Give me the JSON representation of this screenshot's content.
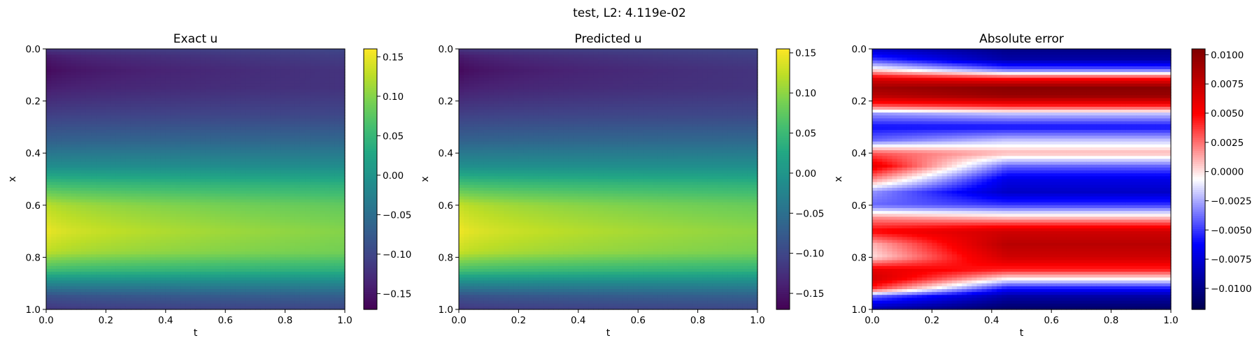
{
  "suptitle": "test, L2: 4.119e-02",
  "chart_data": [
    {
      "type": "heatmap",
      "title": "Exact u",
      "xlabel": "t",
      "ylabel": "x",
      "xlim": [
        0.0,
        1.0
      ],
      "ylim": [
        1.0,
        0.0
      ],
      "xticks": [
        "0.0",
        "0.2",
        "0.4",
        "0.6",
        "0.8",
        "1.0"
      ],
      "yticks": [
        "0.0",
        "0.2",
        "0.4",
        "0.6",
        "0.8",
        "1.0"
      ],
      "colormap": "viridis",
      "colorbar_range": [
        -0.17,
        0.16
      ],
      "colorbar_ticks": [
        "0.15",
        "0.10",
        "0.05",
        "0.00",
        "−0.05",
        "−0.10",
        "−0.15"
      ],
      "profile": {
        "x": [
          0.0,
          0.03,
          0.08,
          0.15,
          0.25,
          0.35,
          0.45,
          0.52,
          0.6,
          0.7,
          0.78,
          0.85,
          0.9,
          0.95,
          1.0
        ],
        "u_t0": [
          -0.12,
          -0.15,
          -0.165,
          -0.145,
          -0.11,
          -0.07,
          -0.01,
          0.06,
          0.13,
          0.155,
          0.13,
          0.06,
          -0.02,
          -0.09,
          -0.12
        ],
        "u_t1": [
          -0.1,
          -0.11,
          -0.12,
          -0.12,
          -0.1,
          -0.06,
          -0.01,
          0.04,
          0.08,
          0.1,
          0.09,
          0.04,
          -0.02,
          -0.07,
          -0.1
        ]
      }
    },
    {
      "type": "heatmap",
      "title": "Predicted u",
      "xlabel": "t",
      "ylabel": "x",
      "xlim": [
        0.0,
        1.0
      ],
      "ylim": [
        1.0,
        0.0
      ],
      "xticks": [
        "0.0",
        "0.2",
        "0.4",
        "0.6",
        "0.8",
        "1.0"
      ],
      "yticks": [
        "0.0",
        "0.2",
        "0.4",
        "0.6",
        "0.8",
        "1.0"
      ],
      "colormap": "viridis",
      "colorbar_range": [
        -0.17,
        0.155
      ],
      "colorbar_ticks": [
        "0.15",
        "0.10",
        "0.05",
        "0.00",
        "−0.05",
        "−0.10",
        "−0.15"
      ],
      "profile": {
        "x": [
          0.0,
          0.03,
          0.08,
          0.15,
          0.25,
          0.35,
          0.45,
          0.52,
          0.6,
          0.7,
          0.78,
          0.85,
          0.9,
          0.95,
          1.0
        ],
        "u_t0": [
          -0.12,
          -0.15,
          -0.165,
          -0.145,
          -0.11,
          -0.07,
          -0.01,
          0.06,
          0.13,
          0.152,
          0.13,
          0.06,
          -0.02,
          -0.09,
          -0.12
        ],
        "u_t1": [
          -0.1,
          -0.11,
          -0.12,
          -0.12,
          -0.1,
          -0.06,
          -0.01,
          0.04,
          0.08,
          0.1,
          0.09,
          0.04,
          -0.02,
          -0.07,
          -0.1
        ]
      }
    },
    {
      "type": "heatmap",
      "title": "Absolute error",
      "xlabel": "t",
      "ylabel": "x",
      "xlim": [
        0.0,
        1.0
      ],
      "ylim": [
        1.0,
        0.0
      ],
      "xticks": [
        "0.0",
        "0.2",
        "0.4",
        "0.6",
        "0.8",
        "1.0"
      ],
      "yticks": [
        "0.0",
        "0.2",
        "0.4",
        "0.6",
        "0.8",
        "1.0"
      ],
      "colormap": "seismic",
      "colorbar_range": [
        -0.0118,
        0.0105
      ],
      "colorbar_ticks": [
        "0.0100",
        "0.0075",
        "0.0050",
        "0.0025",
        "0.0000",
        "−0.0025",
        "−0.0050",
        "−0.0075",
        "−0.0100"
      ],
      "profile": {
        "x": [
          0.0,
          0.04,
          0.08,
          0.12,
          0.15,
          0.18,
          0.22,
          0.25,
          0.3,
          0.35,
          0.4,
          0.45,
          0.5,
          0.55,
          0.6,
          0.65,
          0.7,
          0.75,
          0.8,
          0.85,
          0.88,
          0.92,
          0.95,
          1.0
        ],
        "err_t1": [
          -0.01,
          -0.009,
          -0.004,
          0.006,
          0.01,
          0.0095,
          0.004,
          -0.002,
          -0.006,
          -0.002,
          0.001,
          -0.004,
          -0.007,
          -0.008,
          -0.005,
          0.001,
          0.007,
          0.008,
          0.007,
          0.004,
          0.0,
          -0.006,
          -0.009,
          -0.011
        ],
        "err_t0": [
          -0.008,
          -0.005,
          0.0,
          0.007,
          0.009,
          0.008,
          0.003,
          -0.003,
          -0.006,
          -0.004,
          0.003,
          0.006,
          0.002,
          -0.003,
          -0.004,
          0.002,
          0.005,
          0.001,
          0.0,
          0.006,
          0.007,
          0.004,
          -0.004,
          -0.009
        ]
      }
    }
  ]
}
